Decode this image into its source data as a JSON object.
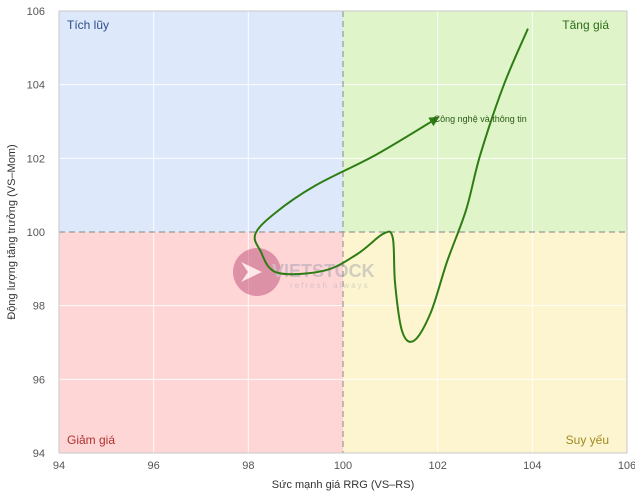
{
  "chart_data": {
    "type": "line",
    "title": "",
    "xlabel": "Sức mạnh giá RRG (VS–RS)",
    "ylabel": "Động lượng tăng trưởng (VS–Mom)",
    "xlim": [
      94,
      106
    ],
    "ylim": [
      94,
      106
    ],
    "x_ticks": [
      "94",
      "96",
      "98",
      "100",
      "102",
      "104",
      "106"
    ],
    "y_ticks": [
      "94",
      "96",
      "98",
      "100",
      "102",
      "104",
      "106"
    ],
    "grid": true,
    "reference": {
      "x": 100,
      "y": 100
    },
    "quadrants": [
      {
        "name": "Tích lũy",
        "position": "top-left",
        "fill": "#dde9fb",
        "text_color": "#2a4d8a"
      },
      {
        "name": "Tăng giá",
        "position": "top-right",
        "fill": "#dff5c9",
        "text_color": "#2d6b1a"
      },
      {
        "name": "Giảm giá",
        "position": "bottom-left",
        "fill": "#ffd6d6",
        "text_color": "#b03030"
      },
      {
        "name": "Suy yếu",
        "position": "bottom-right",
        "fill": "#fdf5cf",
        "text_color": "#a08a1e"
      }
    ],
    "series": [
      {
        "name": "Công nghệ và thông tin",
        "color": "#2e7d14",
        "points": [
          [
            103.9,
            105.5
          ],
          [
            103.4,
            104.0
          ],
          [
            102.9,
            102.1
          ],
          [
            102.6,
            100.6
          ],
          [
            102.2,
            99.2
          ],
          [
            101.85,
            97.8
          ],
          [
            101.5,
            97.05
          ],
          [
            101.25,
            97.3
          ],
          [
            101.1,
            98.6
          ],
          [
            101.05,
            99.85
          ],
          [
            100.85,
            99.95
          ],
          [
            100.3,
            99.4
          ],
          [
            99.6,
            98.95
          ],
          [
            98.6,
            98.9
          ],
          [
            98.25,
            99.5
          ],
          [
            98.15,
            99.95
          ],
          [
            98.55,
            100.5
          ],
          [
            99.4,
            101.25
          ],
          [
            100.7,
            102.1
          ],
          [
            102.0,
            103.1
          ]
        ]
      }
    ]
  },
  "watermark": {
    "brand": "VIETSTOCK",
    "tagline": "refresh always"
  }
}
